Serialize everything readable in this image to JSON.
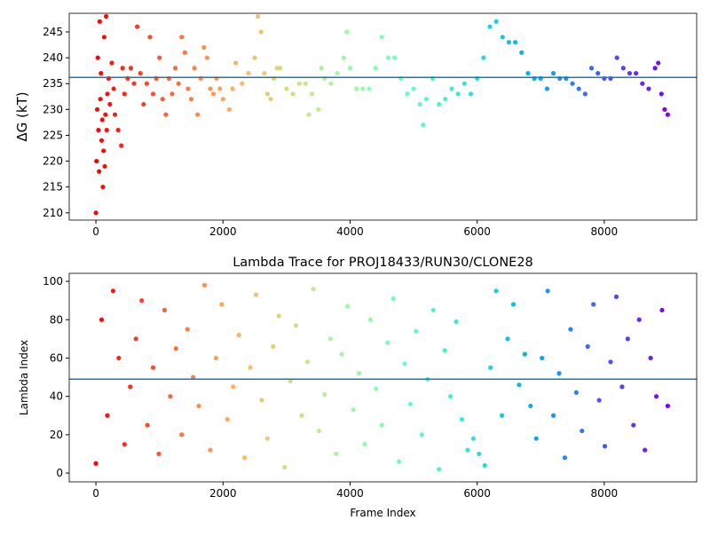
{
  "chart_data": [
    {
      "type": "scatter",
      "ylabel": "ΔG (kT)",
      "colormap": "rainbow_r",
      "xlim": [
        -420,
        9455
      ],
      "ylim": [
        208.6,
        248.6
      ],
      "xticks": [
        0,
        2000,
        4000,
        6000,
        8000
      ],
      "yticks": [
        210,
        215,
        220,
        225,
        230,
        235,
        240,
        245
      ],
      "hline": 236.2,
      "hline_color": "#1f77b4",
      "x": [
        0,
        10,
        20,
        30,
        40,
        50,
        60,
        70,
        80,
        90,
        100,
        110,
        120,
        130,
        140,
        150,
        160,
        170,
        180,
        200,
        220,
        250,
        280,
        300,
        350,
        400,
        420,
        450,
        500,
        550,
        600,
        650,
        700,
        750,
        800,
        850,
        900,
        950,
        1000,
        1050,
        1100,
        1150,
        1200,
        1250,
        1300,
        1350,
        1400,
        1450,
        1500,
        1550,
        1600,
        1650,
        1700,
        1750,
        1800,
        1850,
        1900,
        1950,
        2000,
        2100,
        2150,
        2200,
        2300,
        2400,
        2500,
        2550,
        2600,
        2650,
        2700,
        2750,
        2800,
        2850,
        2900,
        3000,
        3100,
        3200,
        3300,
        3350,
        3400,
        3500,
        3550,
        3600,
        3700,
        3800,
        3900,
        3950,
        4000,
        4100,
        4200,
        4300,
        4400,
        4500,
        4600,
        4700,
        4800,
        4900,
        5000,
        5100,
        5150,
        5200,
        5300,
        5400,
        5500,
        5600,
        5700,
        5800,
        5900,
        6000,
        6100,
        6200,
        6300,
        6400,
        6500,
        6600,
        6700,
        6800,
        6900,
        7000,
        7100,
        7200,
        7300,
        7400,
        7500,
        7600,
        7700,
        7800,
        7900,
        8000,
        8100,
        8200,
        8300,
        8400,
        8500,
        8600,
        8700,
        8800,
        8850,
        8900,
        8950,
        9000
      ],
      "values": [
        210,
        220,
        230,
        240,
        226,
        218,
        247,
        232,
        237,
        224,
        228,
        215,
        222,
        244,
        219,
        229,
        248,
        226,
        233,
        236,
        231,
        239,
        234,
        229,
        226,
        223,
        238,
        233,
        236,
        238,
        235,
        246,
        237,
        231,
        235,
        244,
        233,
        236,
        240,
        232,
        229,
        236,
        233,
        238,
        235,
        244,
        241,
        234,
        232,
        238,
        229,
        236,
        242,
        240,
        234,
        233,
        236,
        234,
        232,
        230,
        234,
        239,
        235,
        237,
        240,
        248,
        245,
        237,
        233,
        232,
        236,
        238,
        238,
        234,
        233,
        235,
        235,
        229,
        233,
        230,
        238,
        236,
        235,
        237,
        240,
        245,
        238,
        234,
        234,
        234,
        238,
        244,
        240,
        240,
        236,
        233,
        234,
        231,
        227,
        232,
        236,
        231,
        232,
        234,
        233,
        235,
        233,
        236,
        240,
        246,
        247,
        244,
        243,
        243,
        241,
        237,
        236,
        236,
        234,
        237,
        236,
        236,
        235,
        234,
        233,
        238,
        237,
        236,
        236,
        240,
        238,
        237,
        237,
        235,
        234,
        238,
        239,
        233,
        230,
        229
      ]
    },
    {
      "type": "scatter",
      "title": "Lambda Trace for PROJ18433/RUN30/CLONE28",
      "xlabel": "Frame Index",
      "ylabel": "Lambda Index",
      "colormap": "rainbow_r",
      "xlim": [
        -420,
        9455
      ],
      "ylim": [
        -4.6,
        104.2
      ],
      "xticks": [
        0,
        2000,
        4000,
        6000,
        8000
      ],
      "yticks": [
        0,
        20,
        40,
        60,
        80,
        100
      ],
      "hline": 49,
      "hline_color": "#1f77b4",
      "x": [
        0,
        90,
        180,
        270,
        360,
        450,
        540,
        630,
        720,
        810,
        900,
        990,
        1080,
        1170,
        1260,
        1350,
        1440,
        1530,
        1620,
        1710,
        1800,
        1890,
        1980,
        2070,
        2160,
        2250,
        2340,
        2430,
        2520,
        2610,
        2700,
        2790,
        2880,
        2970,
        3060,
        3150,
        3240,
        3330,
        3420,
        3510,
        3600,
        3690,
        3780,
        3870,
        3960,
        4050,
        4140,
        4230,
        4320,
        4410,
        4500,
        4590,
        4680,
        4770,
        4860,
        4950,
        5040,
        5130,
        5220,
        5310,
        5400,
        5490,
        5580,
        5670,
        5760,
        5850,
        5940,
        6030,
        6120,
        6210,
        6300,
        6390,
        6480,
        6570,
        6660,
        6750,
        6840,
        6930,
        7020,
        7110,
        7200,
        7290,
        7380,
        7470,
        7560,
        7650,
        7740,
        7830,
        7920,
        8010,
        8100,
        8190,
        8280,
        8370,
        8460,
        8550,
        8640,
        8730,
        8820,
        8910,
        9000
      ],
      "values": [
        5,
        80,
        30,
        95,
        60,
        15,
        45,
        70,
        90,
        25,
        55,
        10,
        85,
        40,
        65,
        20,
        75,
        50,
        35,
        98,
        12,
        60,
        88,
        28,
        45,
        72,
        8,
        55,
        93,
        38,
        18,
        66,
        82,
        3,
        48,
        77,
        30,
        58,
        96,
        22,
        41,
        70,
        10,
        62,
        87,
        33,
        52,
        15,
        80,
        44,
        25,
        68,
        91,
        6,
        57,
        36,
        74,
        20,
        49,
        85,
        2,
        64,
        40,
        79,
        28,
        12,
        18,
        10,
        4,
        55,
        95,
        30,
        70,
        88,
        46,
        62,
        35,
        18,
        60,
        95,
        30,
        52,
        8,
        75,
        42,
        22,
        66,
        88,
        38,
        14,
        58,
        92,
        45,
        70,
        25,
        80,
        12,
        60,
        40,
        85,
        35
      ]
    }
  ]
}
